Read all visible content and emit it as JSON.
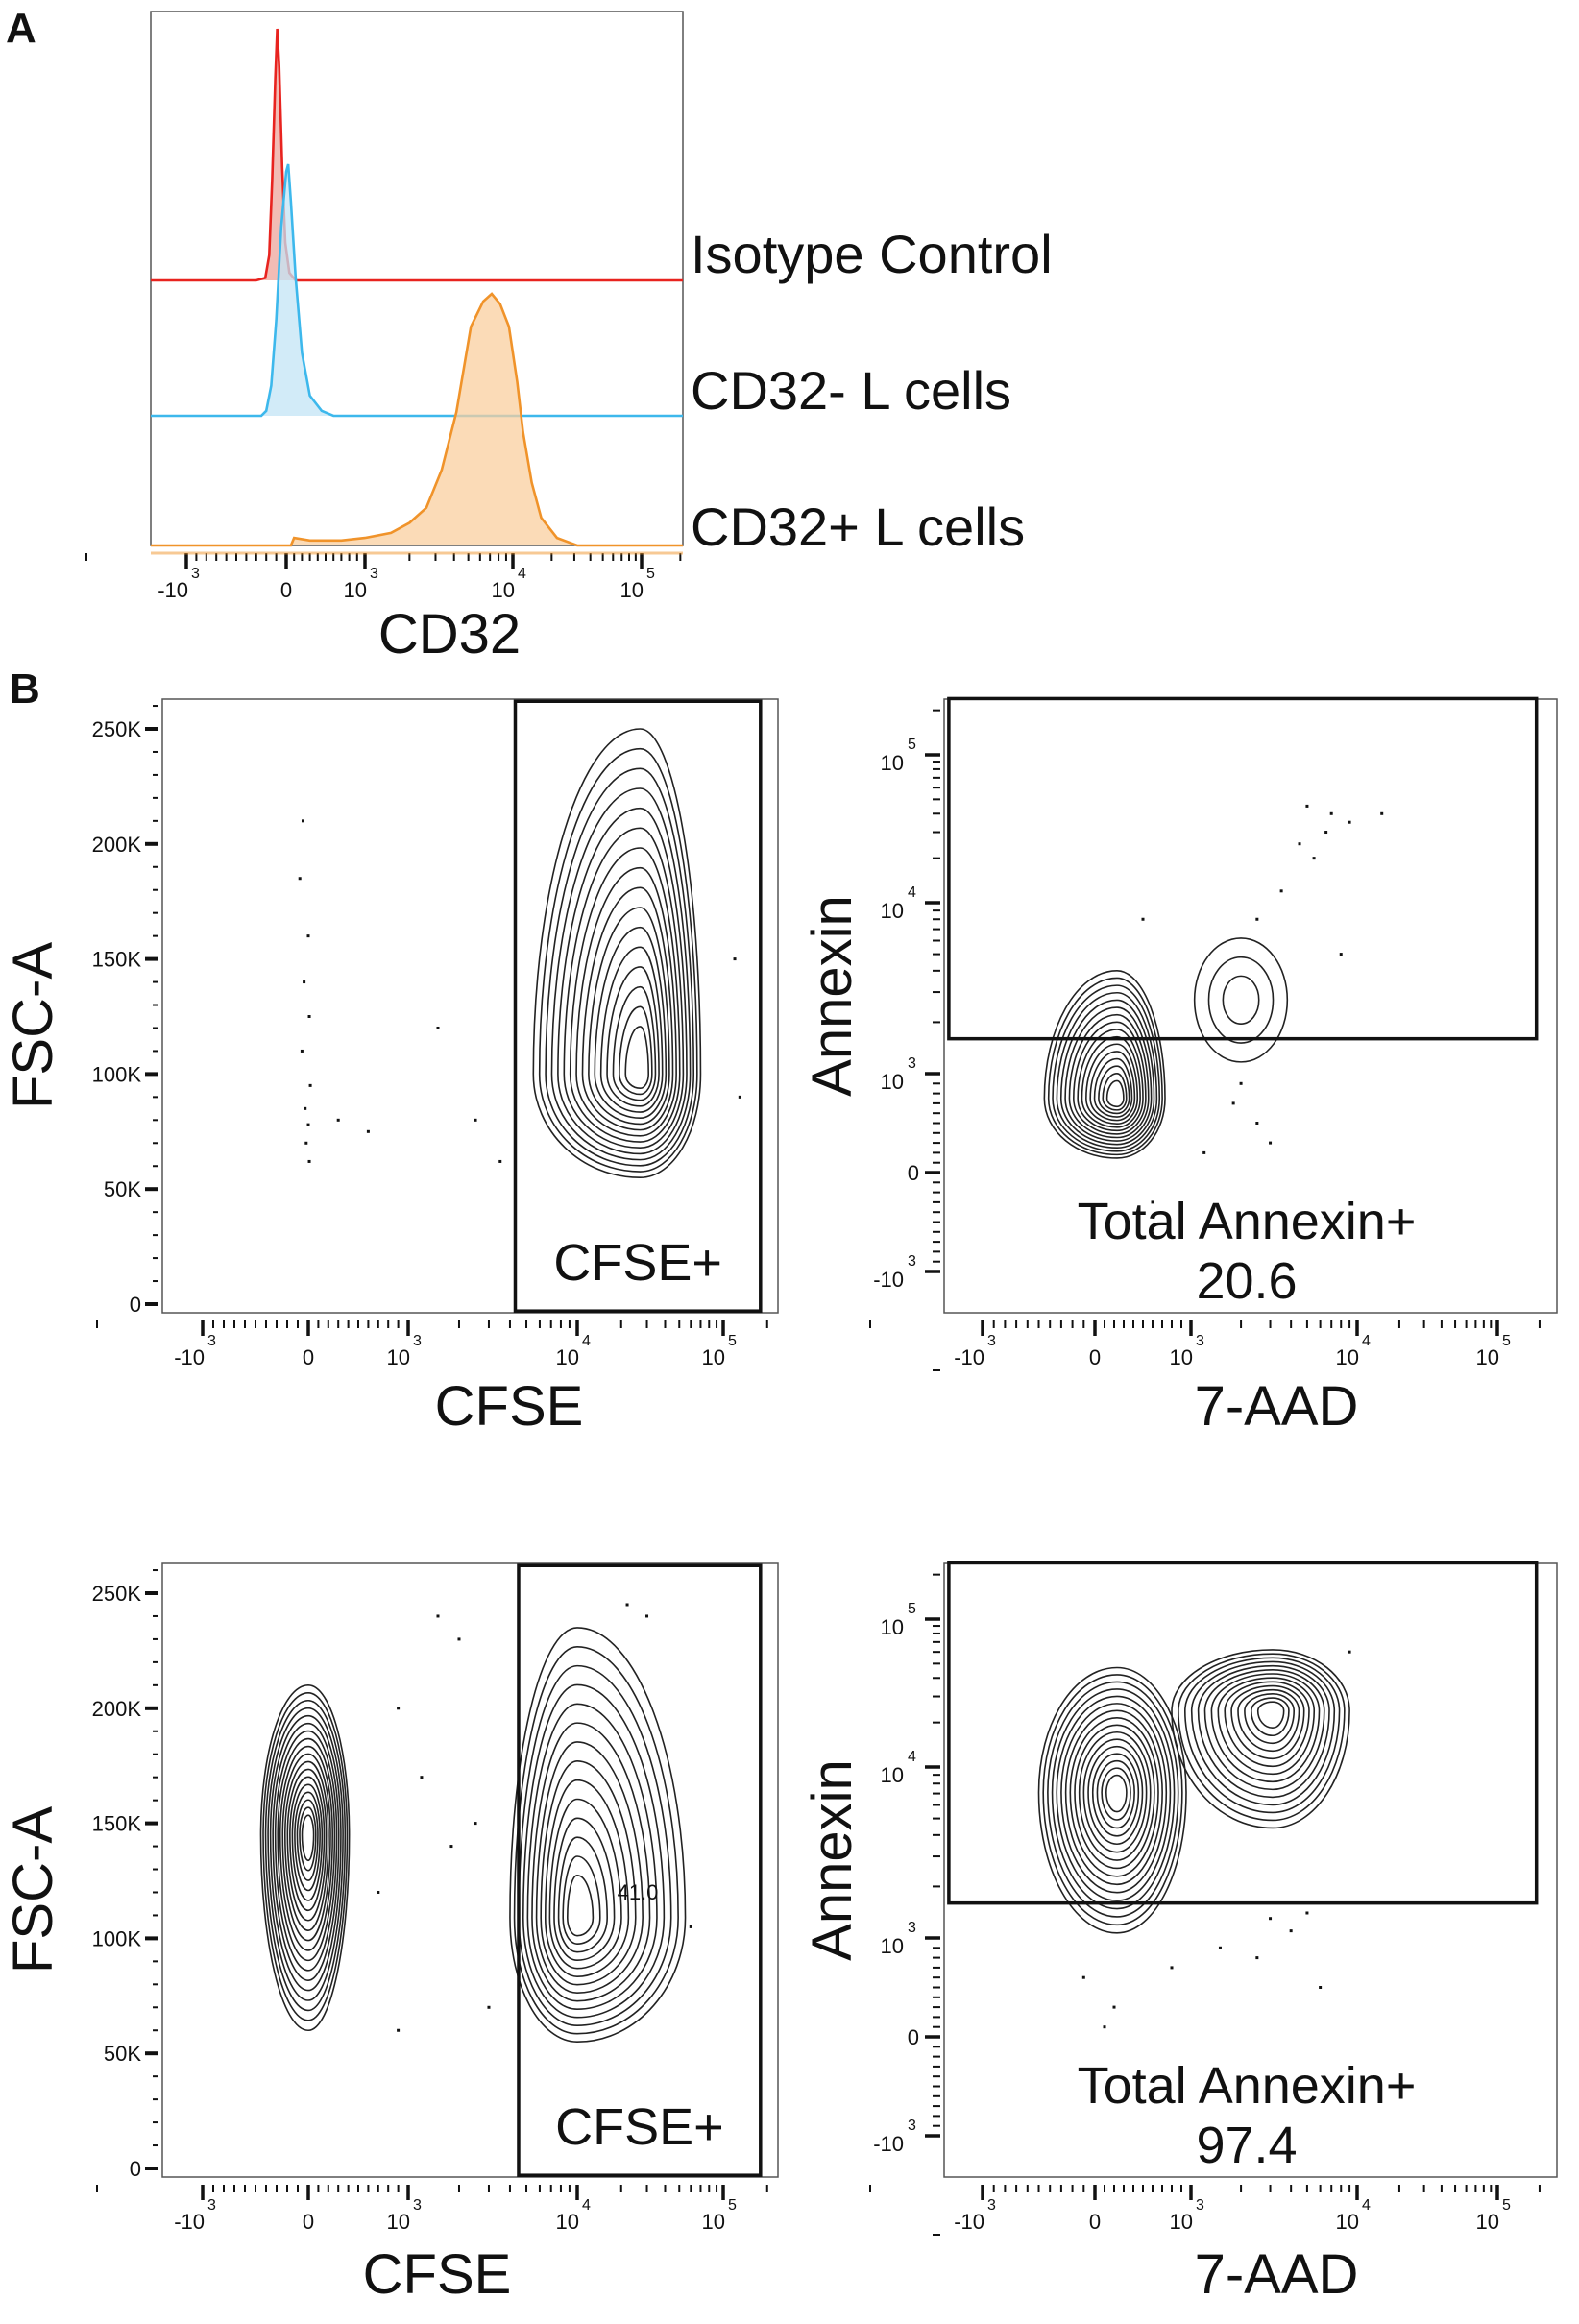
{
  "panel_labels": {
    "a": "A",
    "b": "B"
  },
  "colors": {
    "isotype": "#e8231f",
    "isotype_fill": "#eda59c",
    "cd32neg": "#3db8ec",
    "cd32neg_fill": "#c3e4f6",
    "cd32pos": "#f0932a",
    "cd32pos_fill": "#f9cf9f",
    "contour": "#222222",
    "gate": "#111111"
  },
  "chart_data": [
    {
      "type": "histogram",
      "panel": "A",
      "xlabel": "CD32",
      "x_scale": "biexponential",
      "x_ticks": [
        {
          "value": -1000,
          "base": "-10",
          "exp": "3"
        },
        {
          "value": 0,
          "base": "0",
          "exp": ""
        },
        {
          "value": 1000,
          "base": "10",
          "exp": "3"
        },
        {
          "value": 10000,
          "base": "10",
          "exp": "4"
        },
        {
          "value": 100000,
          "base": "10",
          "exp": "5"
        }
      ],
      "y_units": "% of mode (offset overlay)",
      "series": [
        {
          "name": "Isotype Control",
          "color_key": "isotype",
          "points": [
            [
              -300,
              0
            ],
            [
              -210,
              1
            ],
            [
              -170,
              10
            ],
            [
              -140,
              40
            ],
            [
              -110,
              80
            ],
            [
              -90,
              100
            ],
            [
              -70,
              85
            ],
            [
              -40,
              45
            ],
            [
              -10,
              15
            ],
            [
              40,
              3
            ],
            [
              120,
              0
            ]
          ]
        },
        {
          "name": "CD32- L cells",
          "color_key": "cd32neg",
          "points": [
            [
              -250,
              0
            ],
            [
              -200,
              2
            ],
            [
              -150,
              12
            ],
            [
              -100,
              38
            ],
            [
              -50,
              75
            ],
            [
              0,
              97
            ],
            [
              25,
              100
            ],
            [
              60,
              85
            ],
            [
              120,
              55
            ],
            [
              200,
              25
            ],
            [
              300,
              8
            ],
            [
              450,
              2
            ],
            [
              600,
              0
            ]
          ]
        },
        {
          "name": "CD32+ L cells",
          "color_key": "cd32pos",
          "points": [
            [
              -100,
              0
            ],
            [
              60,
              0
            ],
            [
              100,
              3
            ],
            [
              300,
              2
            ],
            [
              700,
              2
            ],
            [
              1000,
              3
            ],
            [
              1500,
              5
            ],
            [
              2000,
              9
            ],
            [
              2600,
              15
            ],
            [
              3300,
              30
            ],
            [
              4150,
              53
            ],
            [
              5200,
              87
            ],
            [
              6300,
              97
            ],
            [
              7200,
              100
            ],
            [
              8200,
              96
            ],
            [
              9400,
              87
            ],
            [
              10800,
              65
            ],
            [
              12000,
              45
            ],
            [
              14000,
              25
            ],
            [
              16600,
              11
            ],
            [
              22000,
              3
            ],
            [
              31600,
              0
            ]
          ]
        }
      ]
    },
    {
      "type": "contour",
      "panel": "B-top-left",
      "xlabel": "CFSE",
      "ylabel": "FSC-A",
      "x_scale": "biexponential",
      "y_scale": "linear",
      "y_ticks": [
        {
          "value": 0,
          "label": "0"
        },
        {
          "value": 50000,
          "label": "50K"
        },
        {
          "value": 100000,
          "label": "100K"
        },
        {
          "value": 150000,
          "label": "150K"
        },
        {
          "value": 200000,
          "label": "200K"
        },
        {
          "value": 250000,
          "label": "250K"
        }
      ],
      "populations": [
        {
          "center": [
            27000,
            100000
          ],
          "x_range": [
            5500,
            70000
          ],
          "y_range": [
            55000,
            250000
          ],
          "levels": 16
        }
      ],
      "events": [
        [
          -50,
          210000
        ],
        [
          -80,
          185000
        ],
        [
          0,
          160000
        ],
        [
          -40,
          140000
        ],
        [
          10,
          125000
        ],
        [
          -60,
          110000
        ],
        [
          20,
          95000
        ],
        [
          -30,
          85000
        ],
        [
          0,
          78000
        ],
        [
          -20,
          70000
        ],
        [
          10,
          62000
        ],
        [
          300,
          80000
        ],
        [
          600,
          75000
        ],
        [
          1500,
          120000
        ],
        [
          2500,
          80000
        ],
        [
          3500,
          62000
        ],
        [
          120000,
          150000
        ],
        [
          130000,
          90000
        ]
      ],
      "gate": {
        "name": "CFSE+",
        "x_range": [
          4300,
          180000
        ],
        "y_range": [
          -3000,
          262000
        ]
      }
    },
    {
      "type": "contour",
      "panel": "B-top-right",
      "xlabel": "7-AAD",
      "ylabel": "Annexin",
      "x_scale": "biexponential",
      "y_scale": "biexponential",
      "populations": [
        {
          "center": [
            230,
            750
          ],
          "x_range": [
            -450,
            730
          ],
          "y_range": [
            146,
            4000
          ],
          "levels": 16
        },
        {
          "center": [
            2000,
            2700
          ],
          "x_range": [
            1050,
            3800
          ],
          "y_range": [
            1170,
            6200
          ],
          "levels": 3
        }
      ],
      "events": [
        [
          5000,
          45000
        ],
        [
          6500,
          30000
        ],
        [
          7000,
          40000
        ],
        [
          9000,
          35000
        ],
        [
          4500,
          25000
        ],
        [
          5500,
          20000
        ],
        [
          2500,
          8000
        ],
        [
          3500,
          12000
        ],
        [
          1800,
          700
        ],
        [
          2500,
          500
        ],
        [
          3000,
          300
        ],
        [
          1200,
          200
        ],
        [
          600,
          -300
        ],
        [
          2000,
          900
        ],
        [
          8000,
          5000
        ],
        [
          500,
          8000
        ],
        [
          15000,
          40000
        ]
      ],
      "gate": {
        "name": "Total Annexin+",
        "value": "20.6",
        "x_range": [
          -1300,
          190000
        ],
        "y_range": [
          1600,
          240000
        ]
      }
    },
    {
      "type": "contour",
      "panel": "B-bottom-left",
      "xlabel": "CFSE",
      "ylabel": "FSC-A",
      "x_scale": "biexponential",
      "y_scale": "linear",
      "populations": [
        {
          "center": [
            0,
            145000
          ],
          "x_range": [
            -450,
            410
          ],
          "y_range": [
            60000,
            210000
          ],
          "levels": 18
        },
        {
          "center": [
            10000,
            109000
          ],
          "x_range": [
            4000,
            55000
          ],
          "y_range": [
            55000,
            235000
          ],
          "levels": 14
        }
      ],
      "events": [
        [
          1500,
          240000
        ],
        [
          2000,
          230000
        ],
        [
          900,
          200000
        ],
        [
          1200,
          170000
        ],
        [
          2500,
          150000
        ],
        [
          700,
          120000
        ],
        [
          1800,
          140000
        ],
        [
          3000,
          70000
        ],
        [
          22000,
          245000
        ],
        [
          30000,
          240000
        ],
        [
          60000,
          105000
        ],
        [
          900,
          60000
        ]
      ],
      "gate": {
        "name": "CFSE+",
        "value": "41.0",
        "x_range": [
          4500,
          180000
        ],
        "y_range": [
          -3000,
          262000
        ]
      }
    },
    {
      "type": "contour",
      "panel": "B-bottom-right",
      "xlabel": "7-AAD",
      "ylabel": "Annexin",
      "x_scale": "biexponential",
      "y_scale": "biexponential",
      "populations": [
        {
          "center": [
            230,
            7100
          ],
          "x_range": [
            -500,
            950
          ],
          "y_range": [
            1070,
            47000
          ],
          "levels": 16
        },
        {
          "center": [
            3100,
            24000
          ],
          "x_range": [
            800,
            9000
          ],
          "y_range": [
            4400,
            62000
          ],
          "levels": 14
        }
      ],
      "events": [
        [
          3000,
          1300
        ],
        [
          4000,
          1100
        ],
        [
          1500,
          900
        ],
        [
          800,
          700
        ],
        [
          200,
          300
        ],
        [
          -100,
          600
        ],
        [
          5000,
          1400
        ],
        [
          2500,
          800
        ],
        [
          6000,
          500
        ],
        [
          100,
          100
        ],
        [
          9000,
          60000
        ]
      ],
      "gate": {
        "name": "Total Annexin+",
        "value": "97.4",
        "x_range": [
          -1300,
          190000
        ],
        "y_range": [
          1600,
          240000
        ]
      }
    }
  ],
  "bio_ticks": [
    {
      "value": -1000,
      "base": "-10",
      "exp": "3"
    },
    {
      "value": 0,
      "base": "0",
      "exp": ""
    },
    {
      "value": 1000,
      "base": "10",
      "exp": "3"
    },
    {
      "value": 10000,
      "base": "10",
      "exp": "4"
    },
    {
      "value": 100000,
      "base": "10",
      "exp": "5"
    }
  ]
}
